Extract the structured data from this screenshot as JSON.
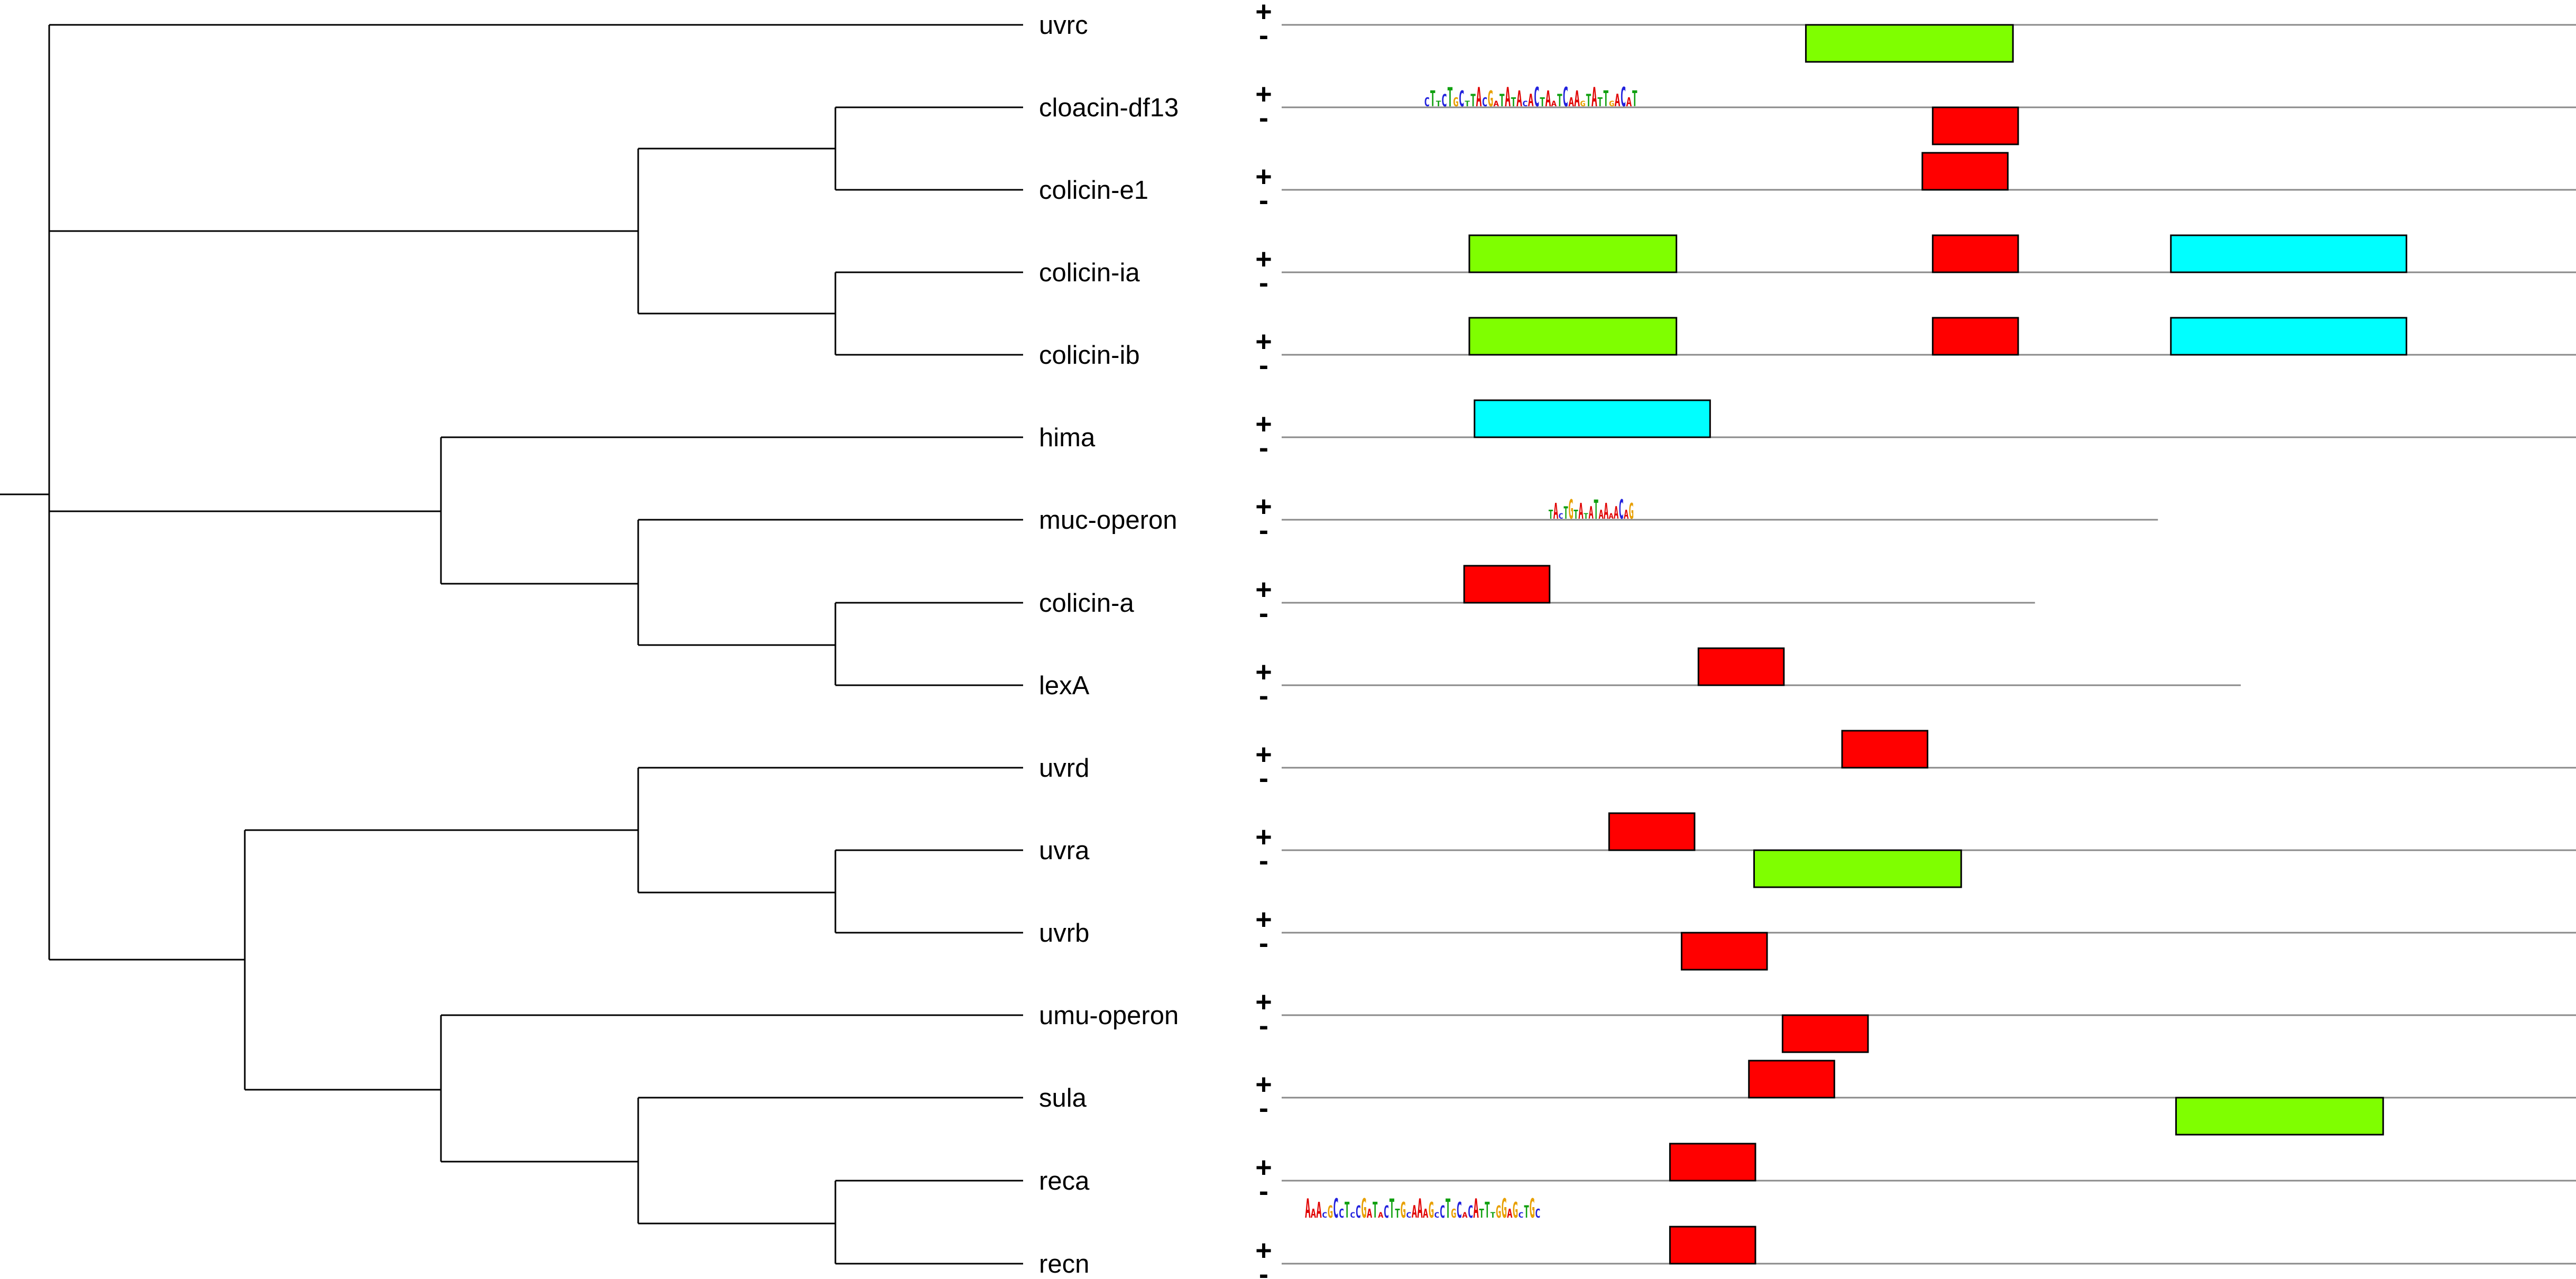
{
  "strand_labels": {
    "plus": "+",
    "minus": "-"
  },
  "motif_colors": {
    "red": "#ff0000",
    "green": "#7fff00",
    "cyan": "#00ffff"
  },
  "base_colors": {
    "A": "#e00000",
    "C": "#2222dd",
    "G": "#e8a000",
    "T": "#10a010"
  },
  "leaves": [
    {
      "name": "uvrc",
      "length": 1.0,
      "motifs": [
        {
          "strand": "-",
          "start": 0.405,
          "end": 0.565,
          "color": "green"
        }
      ]
    },
    {
      "name": "cloacin-df13",
      "length": 1.0,
      "logo": {
        "strand": "+",
        "start": 0.11,
        "end": 0.275,
        "text": "CTTCTGCTTACGATATACACTAATCAAGTATTGACAT"
      },
      "motifs": [
        {
          "strand": "-",
          "start": 0.503,
          "end": 0.569,
          "color": "red"
        }
      ]
    },
    {
      "name": "colicin-e1",
      "length": 1.0,
      "motifs": [
        {
          "strand": "+",
          "start": 0.495,
          "end": 0.561,
          "color": "red"
        }
      ]
    },
    {
      "name": "colicin-ia",
      "length": 1.0,
      "motifs": [
        {
          "strand": "+",
          "start": 0.145,
          "end": 0.305,
          "color": "green"
        },
        {
          "strand": "+",
          "start": 0.503,
          "end": 0.569,
          "color": "red"
        },
        {
          "strand": "+",
          "start": 0.687,
          "end": 0.869,
          "color": "cyan"
        }
      ]
    },
    {
      "name": "colicin-ib",
      "length": 1.0,
      "motifs": [
        {
          "strand": "+",
          "start": 0.145,
          "end": 0.305,
          "color": "green"
        },
        {
          "strand": "+",
          "start": 0.503,
          "end": 0.569,
          "color": "red"
        },
        {
          "strand": "+",
          "start": 0.687,
          "end": 0.869,
          "color": "cyan"
        }
      ]
    },
    {
      "name": "hima",
      "length": 1.0,
      "motifs": [
        {
          "strand": "+",
          "start": 0.149,
          "end": 0.331,
          "color": "cyan"
        }
      ]
    },
    {
      "name": "muc-operon",
      "length": 0.677,
      "logo": {
        "strand": "+",
        "start": 0.206,
        "end": 0.272,
        "text": "TACTGTATATAAAACAG"
      },
      "motifs": []
    },
    {
      "name": "colicin-a",
      "length": 0.582,
      "motifs": [
        {
          "strand": "+",
          "start": 0.141,
          "end": 0.207,
          "color": "red"
        }
      ]
    },
    {
      "name": "lexA",
      "length": 0.741,
      "motifs": [
        {
          "strand": "+",
          "start": 0.322,
          "end": 0.388,
          "color": "red"
        }
      ]
    },
    {
      "name": "uvrd",
      "length": 1.0,
      "motifs": [
        {
          "strand": "+",
          "start": 0.433,
          "end": 0.499,
          "color": "red"
        }
      ]
    },
    {
      "name": "uvra",
      "length": 1.0,
      "motifs": [
        {
          "strand": "+",
          "start": 0.253,
          "end": 0.319,
          "color": "red"
        },
        {
          "strand": "-",
          "start": 0.365,
          "end": 0.525,
          "color": "green"
        }
      ]
    },
    {
      "name": "uvrb",
      "length": 1.0,
      "motifs": [
        {
          "strand": "-",
          "start": 0.309,
          "end": 0.375,
          "color": "red"
        }
      ]
    },
    {
      "name": "umu-operon",
      "length": 1.0,
      "motifs": [
        {
          "strand": "-",
          "start": 0.387,
          "end": 0.453,
          "color": "red"
        }
      ]
    },
    {
      "name": "sula",
      "length": 1.0,
      "motifs": [
        {
          "strand": "+",
          "start": 0.361,
          "end": 0.427,
          "color": "red"
        },
        {
          "strand": "-",
          "start": 0.691,
          "end": 0.851,
          "color": "green"
        }
      ]
    },
    {
      "name": "reca",
      "length": 1.0,
      "logo": {
        "strand": "-",
        "start": 0.018,
        "end": 0.2,
        "text": "AAACGCCTCCGATACTTGCAAAGCCTGCACATTTGGAGCTGC"
      },
      "motifs": [
        {
          "strand": "+",
          "start": 0.3,
          "end": 0.366,
          "color": "red"
        }
      ]
    },
    {
      "name": "recn",
      "length": 1.0,
      "motifs": [
        {
          "strand": "+",
          "start": 0.3,
          "end": 0.366,
          "color": "red"
        }
      ]
    }
  ]
}
